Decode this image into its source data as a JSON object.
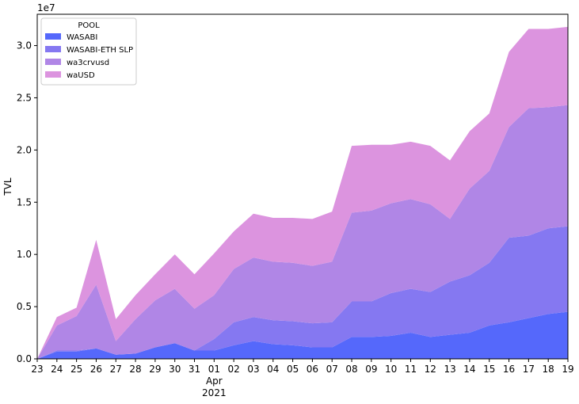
{
  "chart_data": {
    "type": "area",
    "stacked": true,
    "x": [
      "23",
      "24",
      "25",
      "26",
      "27",
      "28",
      "29",
      "30",
      "31",
      "01",
      "02",
      "03",
      "04",
      "05",
      "06",
      "07",
      "08",
      "09",
      "10",
      "11",
      "12",
      "13",
      "14",
      "15",
      "16",
      "17",
      "18",
      "19"
    ],
    "x_month_label": "Apr",
    "x_year_label": "2021",
    "xlabel": "",
    "ylabel": "TVL",
    "y_offset_text": "1e7",
    "ylim": [
      0,
      3.3
    ],
    "yticks": [
      "0.0",
      "0.5",
      "1.0",
      "1.5",
      "2.0",
      "2.5",
      "3.0"
    ],
    "grid": false,
    "legend": {
      "title": "POOL",
      "placement": "top-left"
    },
    "series": [
      {
        "name": "WASABI",
        "color": "#5568fb",
        "values": [
          0.0,
          0.07,
          0.07,
          0.1,
          0.04,
          0.05,
          0.11,
          0.15,
          0.08,
          0.08,
          0.13,
          0.17,
          0.14,
          0.13,
          0.11,
          0.11,
          0.21,
          0.21,
          0.22,
          0.25,
          0.21,
          0.23,
          0.25,
          0.32,
          0.35,
          0.39,
          0.43,
          0.45
        ]
      },
      {
        "name": "WASABI-ETH SLP",
        "color": "#8578f1",
        "values": [
          0.0,
          0.01,
          0.01,
          0.0,
          0.0,
          0.0,
          0.0,
          0.0,
          0.0,
          0.11,
          0.22,
          0.23,
          0.23,
          0.23,
          0.23,
          0.24,
          0.34,
          0.34,
          0.41,
          0.42,
          0.43,
          0.51,
          0.55,
          0.6,
          0.81,
          0.79,
          0.82,
          0.82
        ]
      },
      {
        "name": "wa3crvusd",
        "color": "#b086e6",
        "values": [
          0.0,
          0.24,
          0.33,
          0.61,
          0.13,
          0.33,
          0.45,
          0.52,
          0.4,
          0.42,
          0.51,
          0.57,
          0.56,
          0.56,
          0.55,
          0.58,
          0.85,
          0.87,
          0.86,
          0.86,
          0.84,
          0.6,
          0.83,
          0.88,
          1.06,
          1.22,
          1.16,
          1.16
        ]
      },
      {
        "name": "waUSD",
        "color": "#dc94df",
        "values": [
          0.0,
          0.08,
          0.08,
          0.43,
          0.21,
          0.23,
          0.25,
          0.33,
          0.33,
          0.4,
          0.36,
          0.42,
          0.42,
          0.43,
          0.45,
          0.48,
          0.64,
          0.63,
          0.56,
          0.55,
          0.56,
          0.56,
          0.55,
          0.55,
          0.72,
          0.76,
          0.75,
          0.75
        ]
      }
    ]
  }
}
